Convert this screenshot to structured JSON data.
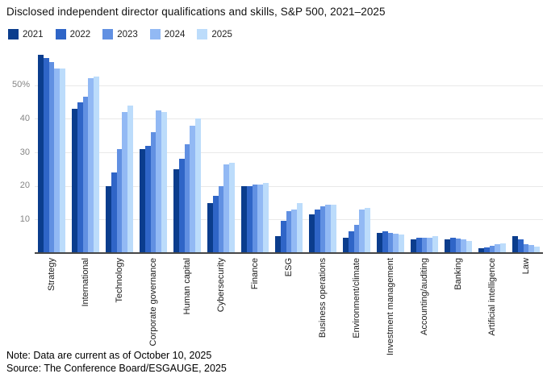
{
  "title": "Disclosed independent director qualifications and skills, S&P 500, 2021–2025",
  "footer": {
    "note": "Note: Data are current as of October 10, 2025",
    "source": "Source: The Conference Board/ESGAUGE, 2025"
  },
  "chart_data": {
    "type": "bar",
    "title": "Disclosed independent director qualifications and skills, S&P 500, 2021–2025",
    "unit": "%",
    "grid": true,
    "legend_position": "top-left",
    "ylim": [
      0,
      61
    ],
    "y_ticks": [
      {
        "value": 10,
        "label": "10"
      },
      {
        "value": 20,
        "label": "20"
      },
      {
        "value": 30,
        "label": "30"
      },
      {
        "value": 40,
        "label": "40"
      },
      {
        "value": 50,
        "label": "50%"
      }
    ],
    "categories": [
      "Strategy",
      "International",
      "Technology",
      "Corporate governance",
      "Human capital",
      "Cybersecurity",
      "Finance",
      "ESG",
      "Business operations",
      "Environment/climate",
      "Investment management",
      "Accounting/auditing",
      "Banking",
      "Artificial intelligence",
      "Law"
    ],
    "series": [
      {
        "name": "2021",
        "color": "#0b3d8d",
        "values": [
          59,
          43,
          20,
          31,
          25,
          15,
          20,
          5,
          11.5,
          4.5,
          6,
          4,
          4,
          1.5,
          5
        ]
      },
      {
        "name": "2022",
        "color": "#2f65c7",
        "values": [
          58,
          45,
          24,
          32,
          28,
          17,
          20,
          9.5,
          13,
          6.5,
          6.5,
          4.5,
          4.5,
          1.8,
          4
        ]
      },
      {
        "name": "2023",
        "color": "#6190e2",
        "values": [
          57,
          46.5,
          31,
          36,
          32.5,
          20,
          20.5,
          12.5,
          14,
          8.5,
          6,
          4.5,
          4.3,
          2.2,
          2.7
        ]
      },
      {
        "name": "2024",
        "color": "#92b9f4",
        "values": [
          55,
          52,
          42,
          42.5,
          38,
          26.5,
          20.5,
          13,
          14.5,
          13,
          5.8,
          4.5,
          4,
          2.7,
          2.3
        ]
      },
      {
        "name": "2025",
        "color": "#bcdcfb",
        "values": [
          55,
          52.5,
          44,
          42,
          40,
          27,
          21,
          15,
          14.5,
          13.5,
          5.5,
          5,
          3.5,
          3,
          2
        ]
      }
    ]
  }
}
